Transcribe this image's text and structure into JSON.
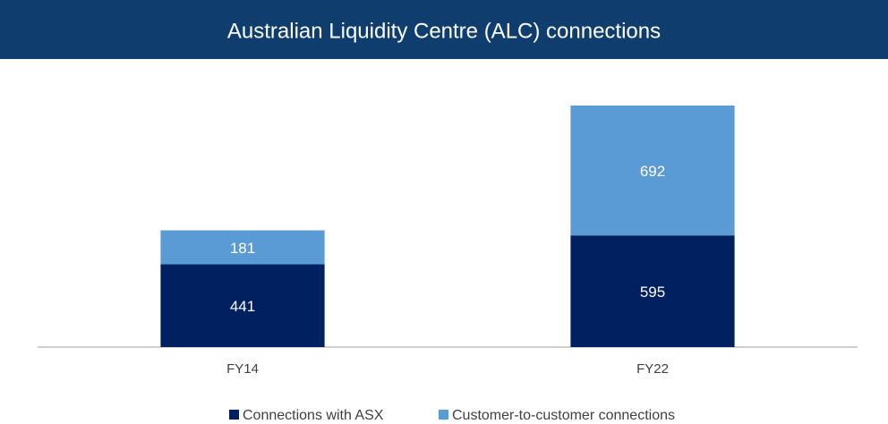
{
  "chart_data": {
    "type": "bar",
    "stacked": true,
    "title": "Australian Liquidity Centre (ALC) connections",
    "categories": [
      "FY14",
      "FY22"
    ],
    "series": [
      {
        "name": "Connections with ASX",
        "color": "#002060",
        "values": [
          441,
          595
        ]
      },
      {
        "name": "Customer-to-customer connections",
        "color": "#5b9bd5",
        "values": [
          181,
          692
        ]
      }
    ],
    "legend": "bottom"
  }
}
